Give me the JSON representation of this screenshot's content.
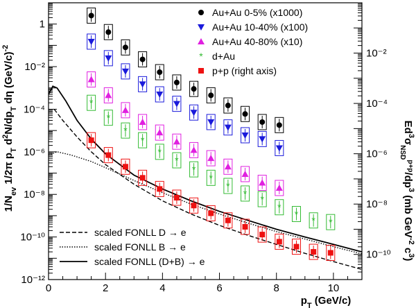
{
  "chart_data": {
    "type": "scatter",
    "x_axis": {
      "label": "p_T (GeV/c)",
      "range": [
        0,
        11
      ],
      "ticks": [
        0,
        2,
        4,
        6,
        8,
        10
      ],
      "scale": "linear"
    },
    "y_axis_left": {
      "label": "1/N_ev 1/2π p_T d²N/dp_T dη (GeV/c)^-2",
      "range": [
        1e-12,
        10
      ],
      "scale": "log",
      "tick_labels": [
        {
          "value": 1,
          "text": "1"
        },
        {
          "value": 0.01,
          "text": "10⁻²"
        },
        {
          "value": 0.0001,
          "text": "10⁻⁴"
        },
        {
          "value": 1e-06,
          "text": "10⁻⁶"
        },
        {
          "value": 1e-08,
          "text": "10⁻⁸"
        },
        {
          "value": 1e-10,
          "text": "10⁻¹⁰"
        },
        {
          "value": 1e-12,
          "text": "10⁻¹²"
        }
      ]
    },
    "y_axis_right": {
      "label": "Ed³σ_NSD^(p+p)/dp³ (mb GeV⁻² c³)",
      "range": [
        1e-11,
        1
      ],
      "scale": "log",
      "tick_labels": [
        {
          "value": 0.01,
          "text": "10⁻²"
        },
        {
          "value": 0.0001,
          "text": "10⁻⁴"
        },
        {
          "value": 1e-06,
          "text": "10⁻⁶"
        },
        {
          "value": 1e-08,
          "text": "10⁻⁸"
        },
        {
          "value": 1e-10,
          "text": "10⁻¹⁰"
        }
      ]
    },
    "legend_position": "top-right",
    "legend_bottom_position": "bottom-left",
    "series": [
      {
        "name": "Au+Au 0-5% (x1000)",
        "marker": "circle",
        "color": "#000000",
        "sys_box": true,
        "points": [
          [
            1.5,
            2.5
          ],
          [
            2.1,
            0.42
          ],
          [
            2.7,
            0.08
          ],
          [
            3.3,
            0.022
          ],
          [
            3.9,
            0.0055
          ],
          [
            4.5,
            0.0018
          ],
          [
            5.1,
            0.0009
          ],
          [
            5.7,
            0.00045
          ],
          [
            6.3,
            0.00015
          ],
          [
            6.9,
            6e-05
          ],
          [
            7.5,
            2.5e-05
          ],
          [
            8.1,
            1.8e-05
          ]
        ]
      },
      {
        "name": "Au+Au 10-40% (x100)",
        "marker": "triangle-down",
        "color": "#1a1adb",
        "sys_box": true,
        "points": [
          [
            1.5,
            0.15
          ],
          [
            2.1,
            0.025
          ],
          [
            2.7,
            0.006
          ],
          [
            3.3,
            0.0015
          ],
          [
            3.9,
            0.0005
          ],
          [
            4.5,
            0.00018
          ],
          [
            5.1,
            7e-05
          ],
          [
            5.7,
            2.5e-05
          ],
          [
            6.3,
            1.4e-05
          ],
          [
            6.9,
            6e-06
          ],
          [
            7.5,
            4e-06
          ],
          [
            8.1,
            1.5e-06
          ]
        ]
      },
      {
        "name": "Au+Au 40-80% (x10)",
        "marker": "triangle-up",
        "color": "#e020e0",
        "sys_box": true,
        "points": [
          [
            1.5,
            0.0025
          ],
          [
            2.1,
            0.00045
          ],
          [
            2.7,
            9e-05
          ],
          [
            3.3,
            2.5e-05
          ],
          [
            3.9,
            8e-06
          ],
          [
            4.5,
            3e-06
          ],
          [
            5.1,
            1.2e-06
          ],
          [
            5.7,
            5e-07
          ],
          [
            6.3,
            2e-07
          ],
          [
            6.9,
            9e-08
          ],
          [
            7.5,
            3.5e-08
          ],
          [
            8.1,
            2e-08
          ]
        ]
      },
      {
        "name": "d+Au",
        "marker": "star",
        "color": "#33bb33",
        "sys_box": true,
        "points": [
          [
            1.5,
            0.0002
          ],
          [
            2.1,
            4e-05
          ],
          [
            2.7,
            1e-05
          ],
          [
            3.3,
            3.5e-06
          ],
          [
            3.9,
            1e-06
          ],
          [
            4.5,
            4e-07
          ],
          [
            5.1,
            1.5e-07
          ],
          [
            5.7,
            6e-08
          ],
          [
            6.3,
            2.5e-08
          ],
          [
            6.9,
            1.1e-08
          ],
          [
            7.5,
            6e-09
          ],
          [
            8.1,
            2.5e-09
          ],
          [
            8.7,
            1.2e-09
          ],
          [
            9.3,
            6e-10
          ],
          [
            9.9,
            5e-10
          ]
        ]
      },
      {
        "name": "p+p (right axis)",
        "marker": "square",
        "color": "#ee1111",
        "sys_box": true,
        "points": [
          [
            1.5,
            3.5e-06
          ],
          [
            2.1,
            7e-07
          ],
          [
            2.7,
            2e-07
          ],
          [
            3.3,
            6e-08
          ],
          [
            3.9,
            1.8e-08
          ],
          [
            4.5,
            7e-09
          ],
          [
            5.1,
            3e-09
          ],
          [
            5.7,
            1.3e-09
          ],
          [
            6.3,
            6e-10
          ],
          [
            6.9,
            3e-10
          ],
          [
            7.5,
            1.3e-10
          ],
          [
            8.1,
            6e-11
          ],
          [
            8.7,
            3.5e-11
          ],
          [
            9.3,
            2e-11
          ],
          [
            9.9,
            1.8e-11
          ]
        ]
      }
    ],
    "curves": [
      {
        "name": "scaled FONLL D → e",
        "style": "dashed",
        "points": [
          [
            0.2,
            0.0001
          ],
          [
            0.5,
            3e-05
          ],
          [
            1.0,
            5e-06
          ],
          [
            1.5,
            1e-06
          ],
          [
            2.0,
            2.5e-07
          ],
          [
            3.0,
            3e-08
          ],
          [
            4.0,
            5e-09
          ],
          [
            5.0,
            1.2e-09
          ],
          [
            6.0,
            3.5e-10
          ],
          [
            7.0,
            1.2e-10
          ],
          [
            8.0,
            4.5e-11
          ],
          [
            9.0,
            1.7e-11
          ],
          [
            10.0,
            7e-12
          ],
          [
            11.0,
            3e-12
          ]
        ]
      },
      {
        "name": "scaled FONLL B → e",
        "style": "dotted",
        "points": [
          [
            0.0,
            7e-07
          ],
          [
            0.3,
            1e-06
          ],
          [
            0.8,
            7e-07
          ],
          [
            1.5,
            3.5e-07
          ],
          [
            2.0,
            1.8e-07
          ],
          [
            3.0,
            4.5e-08
          ],
          [
            4.0,
            1.2e-08
          ],
          [
            5.0,
            3.5e-09
          ],
          [
            6.0,
            1.2e-09
          ],
          [
            7.0,
            4.5e-10
          ],
          [
            8.0,
            1.8e-10
          ],
          [
            9.0,
            8e-11
          ],
          [
            10.0,
            3.5e-11
          ],
          [
            11.0,
            1.6e-11
          ]
        ]
      },
      {
        "name": "scaled FONLL (D+B) → e",
        "style": "solid",
        "points": [
          [
            0.0,
            0.0005
          ],
          [
            0.15,
            0.0012
          ],
          [
            0.3,
            0.001
          ],
          [
            0.6,
            0.00025
          ],
          [
            1.0,
            3e-05
          ],
          [
            1.5,
            4e-06
          ],
          [
            2.0,
            8e-07
          ],
          [
            3.0,
            8e-08
          ],
          [
            4.0,
            1.8e-08
          ],
          [
            5.0,
            5e-09
          ],
          [
            6.0,
            1.6e-09
          ],
          [
            7.0,
            6e-10
          ],
          [
            8.0,
            2.3e-10
          ],
          [
            9.0,
            1e-10
          ],
          [
            10.0,
            4.5e-11
          ],
          [
            11.0,
            2e-11
          ]
        ]
      }
    ]
  }
}
